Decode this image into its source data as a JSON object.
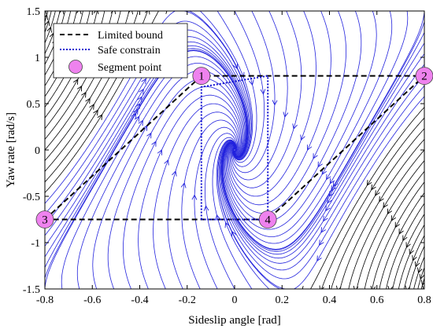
{
  "chart_data": {
    "type": "line",
    "xlabel": "Sideslip angle [rad]",
    "ylabel": "Yaw rate [rad/s]",
    "xlim": [
      -0.8,
      0.8
    ],
    "ylim": [
      -1.5,
      1.5
    ],
    "xticks": [
      -0.8,
      -0.6,
      -0.4,
      -0.2,
      0,
      0.2,
      0.4,
      0.6,
      0.8
    ],
    "xtick_labels": [
      "-0.8",
      "-0.6",
      "-0.4",
      "-0.2",
      "0",
      "0.2",
      "0.4",
      "0.6",
      "0.8"
    ],
    "yticks": [
      -1.5,
      -1,
      -0.5,
      0,
      0.5,
      1,
      1.5
    ],
    "ytick_labels": [
      "-1.5",
      "-1",
      "-0.5",
      "0",
      "0.5",
      "1",
      "1.5"
    ],
    "grid": false,
    "legend_position": "top-left",
    "series": [
      {
        "name": "Limited bound",
        "color": "#000000",
        "style": "dashed",
        "x": [
          -0.8,
          -0.14,
          0.8,
          0.14,
          -0.8
        ],
        "y": [
          -0.75,
          0.8,
          0.8,
          -0.75,
          -0.75
        ]
      },
      {
        "name": "Safe constrain",
        "color": "#1010d0",
        "style": "dotted",
        "x": [
          -0.14,
          -0.14,
          0.14,
          0.14,
          -0.14
        ],
        "y": [
          -0.75,
          0.68,
          0.8,
          -0.75,
          -0.75
        ]
      },
      {
        "name": "Segment point",
        "color": "#ee82ee",
        "style": "marker",
        "x": [
          -0.14,
          0.8,
          -0.8,
          0.14
        ],
        "y": [
          0.8,
          0.8,
          -0.75,
          -0.75
        ],
        "labels": [
          "1",
          "2",
          "3",
          "4"
        ]
      }
    ],
    "streamlines": {
      "inside_color": "#2222dd",
      "outside_color": "#000000",
      "equilibrium": [
        0,
        0
      ]
    }
  }
}
